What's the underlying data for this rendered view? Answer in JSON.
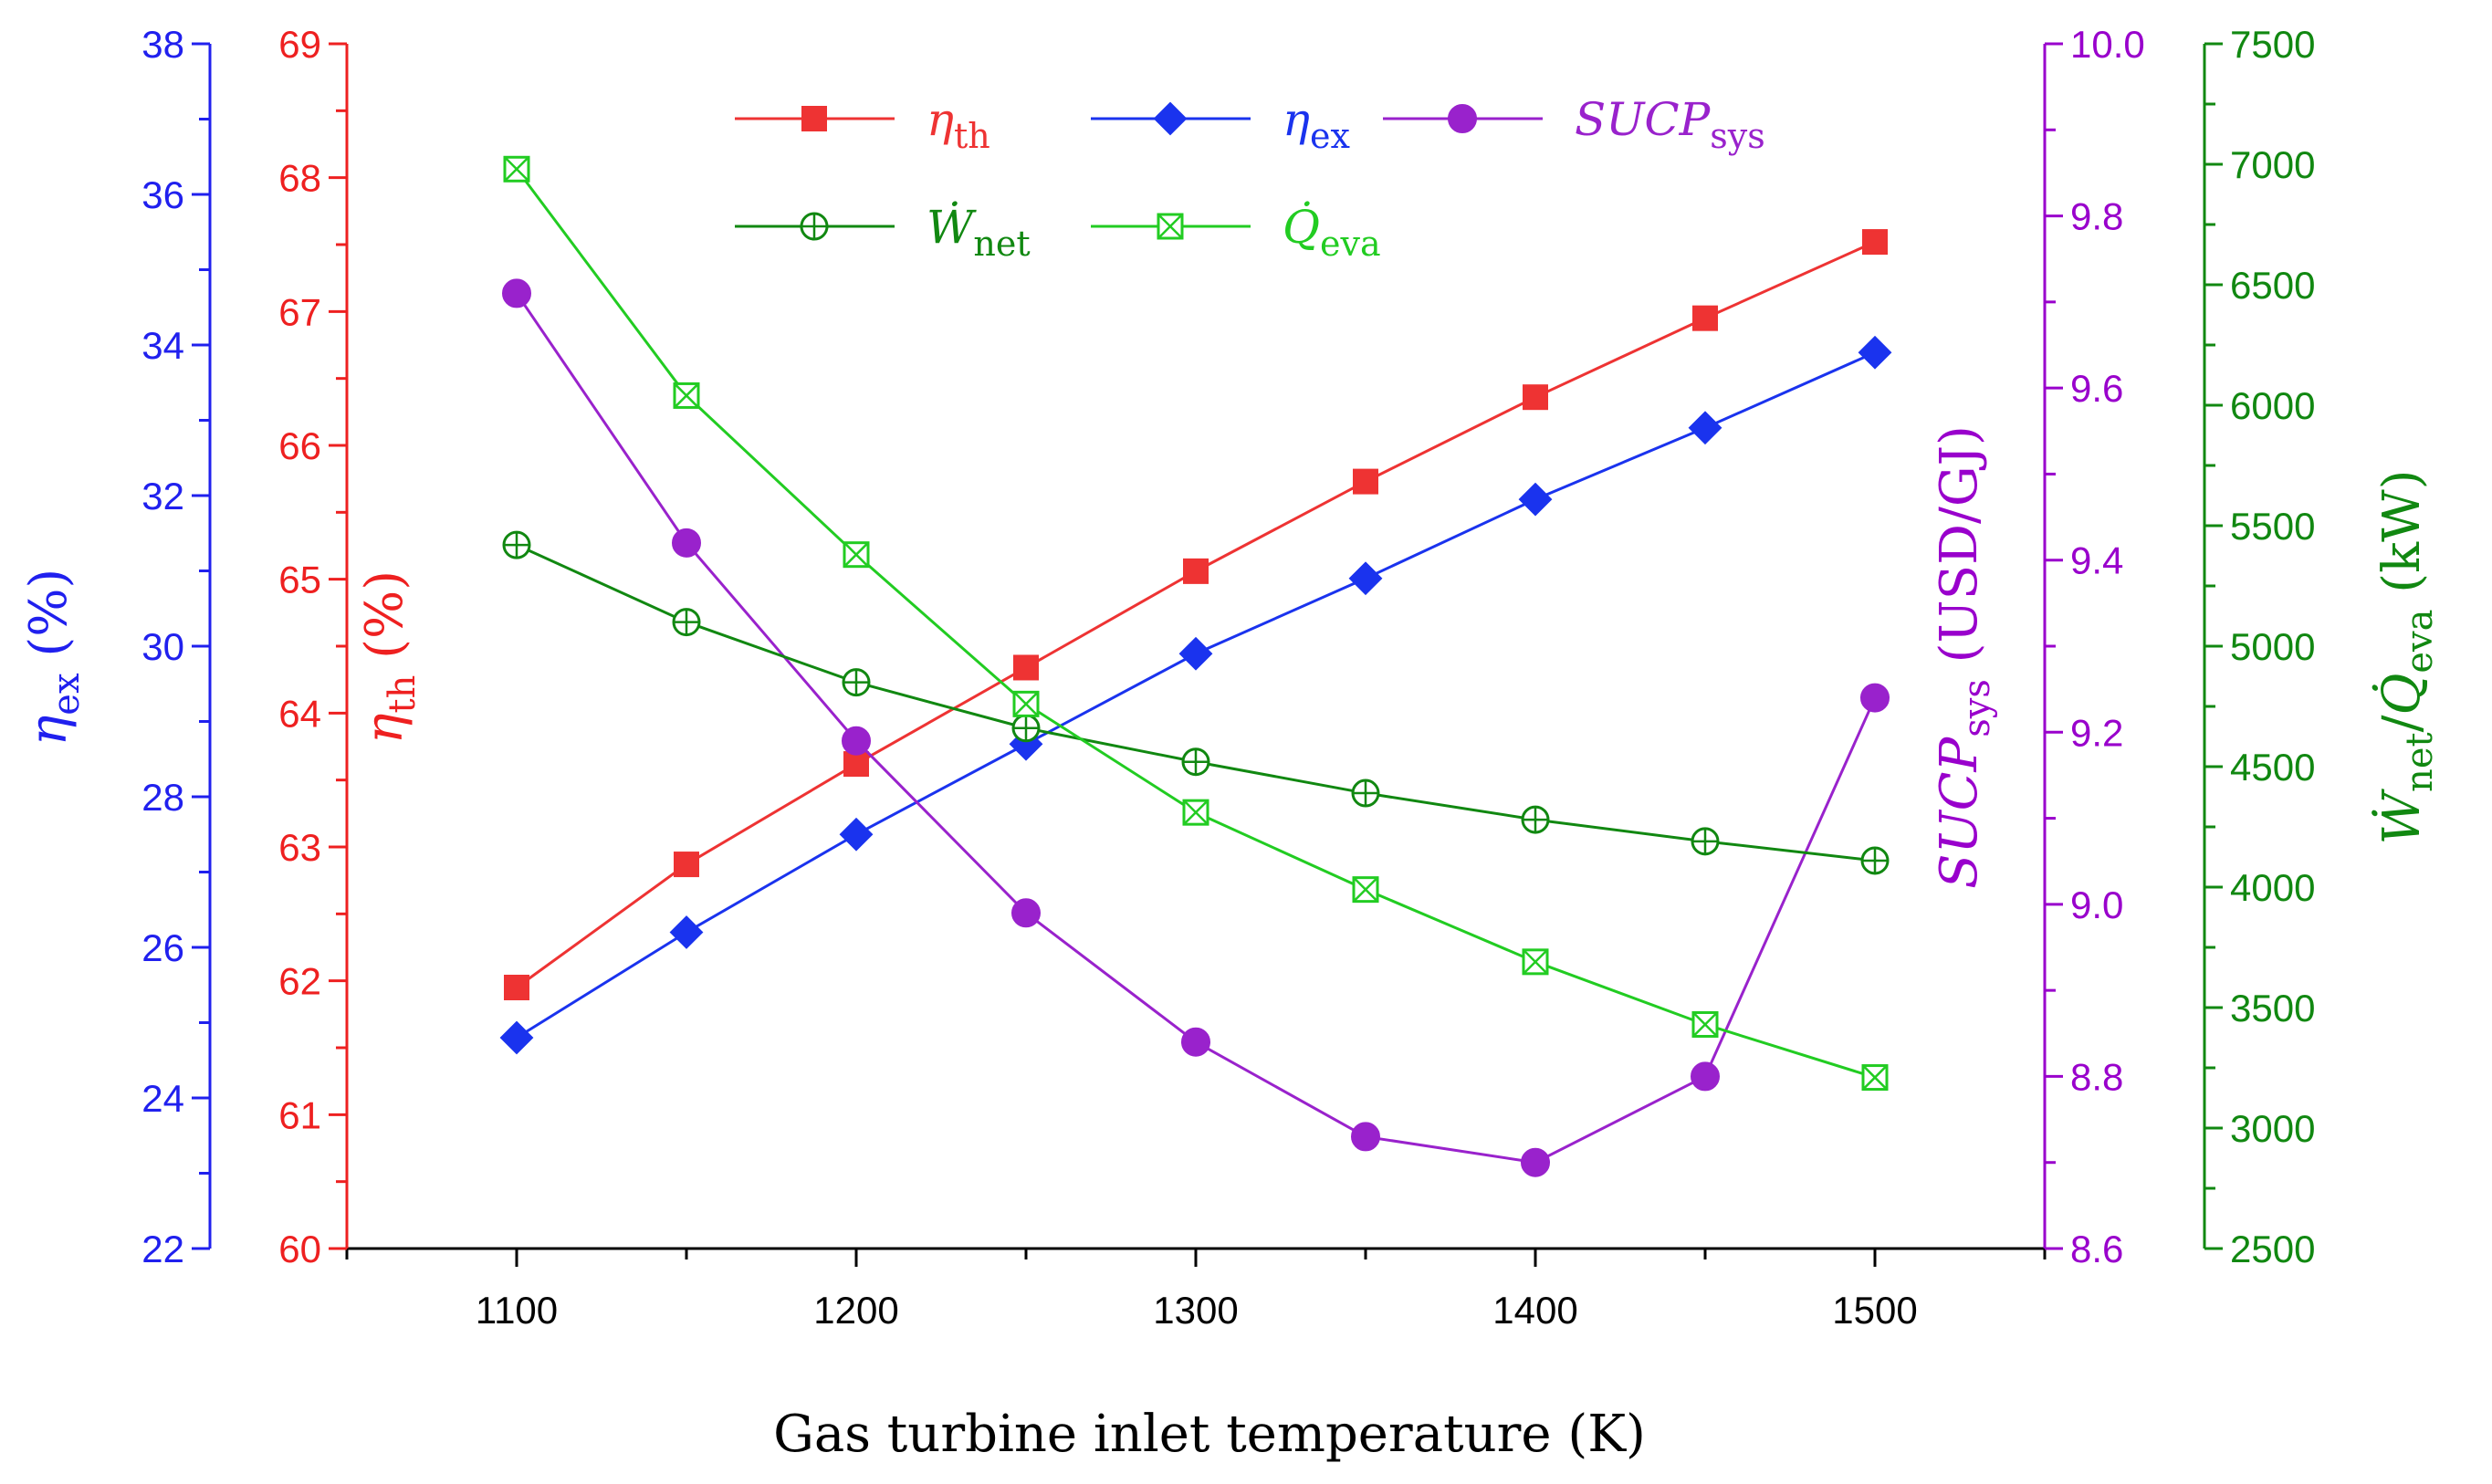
{
  "chart_data": {
    "type": "line",
    "title": "",
    "xlabel": "Gas turbine inlet temperature (K)",
    "x": [
      1100,
      1150,
      1200,
      1250,
      1300,
      1350,
      1400,
      1450,
      1500
    ],
    "xlim": [
      1050,
      1550
    ],
    "xticks": [
      1100,
      1200,
      1300,
      1400,
      1500
    ],
    "grid": false,
    "legend_position": "top-center",
    "axes": [
      {
        "id": "eta_ex_axis",
        "label_main": "η",
        "label_sub": "ex",
        "label_unit": " (%)",
        "color": "#2020ee",
        "ylim": [
          22,
          38
        ],
        "ticks": [
          22,
          24,
          26,
          28,
          30,
          32,
          34,
          36,
          38
        ]
      },
      {
        "id": "eta_th_axis",
        "label_main": "η",
        "label_sub": "th",
        "label_unit": " (%)",
        "color": "#ee2020",
        "ylim": [
          60,
          69
        ],
        "ticks": [
          60,
          61,
          62,
          63,
          64,
          65,
          66,
          67,
          68,
          69
        ]
      },
      {
        "id": "sucp_axis",
        "label_main": "SUCP",
        "label_sub": "sys",
        "label_unit": " (USD/GJ)",
        "color": "#9900cc",
        "ylim": [
          8.6,
          10.0
        ],
        "ticks": [
          8.6,
          8.8,
          9.0,
          9.2,
          9.4,
          9.6,
          9.8,
          10.0
        ],
        "tick_labels": [
          "8.6",
          "8.8",
          "9.0",
          "9.2",
          "9.4",
          "9.6",
          "9.8",
          "10.0"
        ]
      },
      {
        "id": "power_axis",
        "label_main": "Ẇ",
        "label_sub": "net",
        "label_mid": "/",
        "label_main2": "Q̇",
        "label_sub2": "eva",
        "label_unit": " (kW)",
        "color": "#118811",
        "ylim": [
          2500,
          7500
        ],
        "ticks": [
          2500,
          3000,
          3500,
          4000,
          4500,
          5000,
          5500,
          6000,
          6500,
          7000,
          7500
        ]
      }
    ],
    "series": [
      {
        "name": "η",
        "sub": "th",
        "axis": 1,
        "color": "#ee3333",
        "marker": "square",
        "values": [
          61.95,
          62.87,
          63.62,
          64.34,
          65.06,
          65.73,
          66.36,
          66.95,
          67.52
        ]
      },
      {
        "name": "η",
        "sub": "ex",
        "axis": 0,
        "color": "#1a33ee",
        "marker": "diamond",
        "values": [
          24.8,
          26.2,
          27.5,
          28.7,
          29.9,
          30.9,
          31.95,
          32.9,
          33.9
        ]
      },
      {
        "name": "SUCP",
        "sub": "sys",
        "axis": 2,
        "color": "#9922cc",
        "marker": "circle",
        "values": [
          9.71,
          9.42,
          9.19,
          8.99,
          8.84,
          8.73,
          8.7,
          8.8,
          9.24
        ]
      },
      {
        "name": "Ẇ",
        "sub": "net",
        "axis": 3,
        "color": "#118811",
        "marker": "circle-plus",
        "values": [
          5420,
          5100,
          4850,
          4660,
          4520,
          4390,
          4280,
          4190,
          4110
        ]
      },
      {
        "name": "Q̇",
        "sub": "eva",
        "axis": 3,
        "color": "#22cc22",
        "marker": "square-x",
        "values": [
          6980,
          6040,
          5380,
          4760,
          4310,
          3990,
          3690,
          3430,
          3210
        ]
      }
    ]
  }
}
